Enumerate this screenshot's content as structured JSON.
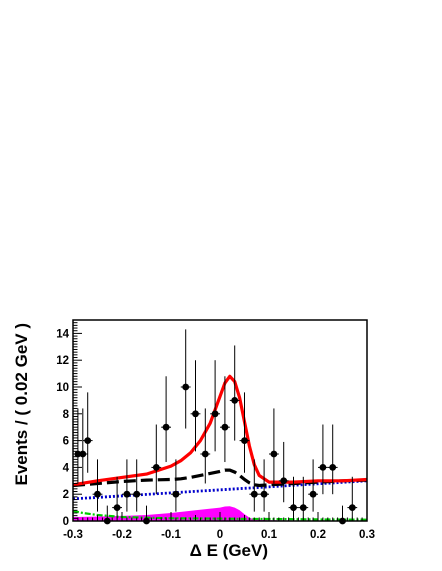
{
  "chart_data": {
    "type": "scatter",
    "title": "",
    "xlabel": "Δ E (GeV)",
    "ylabel": "Events / ( 0.02 GeV )",
    "xlim": [
      -0.3,
      0.3
    ],
    "ylim": [
      0,
      15
    ],
    "x_ticks": [
      "-0.3",
      "-0.2",
      "-0.1",
      "0",
      "0.1",
      "0.2",
      "0.3"
    ],
    "y_ticks": [
      "0",
      "2",
      "4",
      "6",
      "8",
      "10",
      "12",
      "14"
    ],
    "grid": false,
    "legend": "none",
    "colors": {
      "data_points": "#000000",
      "total_fit": "#ff0000",
      "dashed_component": "#000000",
      "linear_background": "#0000cc",
      "green_component": "#00cc00",
      "magenta_component": "#ff00ff"
    },
    "data_points": [
      {
        "x": -0.29,
        "y": 5,
        "yerr_low": 2.2,
        "yerr_high": 3.4
      },
      {
        "x": -0.28,
        "y": 5,
        "yerr_low": 2.2,
        "yerr_high": 3.4
      },
      {
        "x": -0.27,
        "y": 6,
        "yerr_low": 2.4,
        "yerr_high": 3.6
      },
      {
        "x": -0.25,
        "y": 2,
        "yerr_low": 1.3,
        "yerr_high": 2.6
      },
      {
        "x": -0.23,
        "y": 0,
        "yerr_low": 0,
        "yerr_high": 1.15
      },
      {
        "x": -0.21,
        "y": 1,
        "yerr_low": 0.8,
        "yerr_high": 2.3
      },
      {
        "x": -0.19,
        "y": 2,
        "yerr_low": 1.3,
        "yerr_high": 2.6
      },
      {
        "x": -0.17,
        "y": 2,
        "yerr_low": 1.3,
        "yerr_high": 2.6
      },
      {
        "x": -0.15,
        "y": 0,
        "yerr_low": 0,
        "yerr_high": 1.15
      },
      {
        "x": -0.13,
        "y": 4,
        "yerr_low": 2.0,
        "yerr_high": 3.2
      },
      {
        "x": -0.11,
        "y": 7,
        "yerr_low": 2.6,
        "yerr_high": 3.8
      },
      {
        "x": -0.09,
        "y": 2,
        "yerr_low": 1.3,
        "yerr_high": 2.6
      },
      {
        "x": -0.07,
        "y": 10,
        "yerr_low": 3.1,
        "yerr_high": 4.3
      },
      {
        "x": -0.05,
        "y": 8,
        "yerr_low": 2.8,
        "yerr_high": 4.0
      },
      {
        "x": -0.03,
        "y": 5,
        "yerr_low": 2.2,
        "yerr_high": 3.4
      },
      {
        "x": -0.01,
        "y": 8,
        "yerr_low": 2.8,
        "yerr_high": 4.0
      },
      {
        "x": 0.01,
        "y": 7,
        "yerr_low": 2.6,
        "yerr_high": 3.8
      },
      {
        "x": 0.03,
        "y": 9,
        "yerr_low": 3.0,
        "yerr_high": 4.1
      },
      {
        "x": 0.05,
        "y": 6,
        "yerr_low": 2.4,
        "yerr_high": 3.6
      },
      {
        "x": 0.07,
        "y": 2,
        "yerr_low": 1.3,
        "yerr_high": 2.6
      },
      {
        "x": 0.09,
        "y": 2,
        "yerr_low": 1.3,
        "yerr_high": 2.6
      },
      {
        "x": 0.11,
        "y": 5,
        "yerr_low": 2.2,
        "yerr_high": 3.4
      },
      {
        "x": 0.13,
        "y": 3,
        "yerr_low": 1.6,
        "yerr_high": 2.9
      },
      {
        "x": 0.15,
        "y": 1,
        "yerr_low": 0.8,
        "yerr_high": 2.3
      },
      {
        "x": 0.17,
        "y": 1,
        "yerr_low": 0.8,
        "yerr_high": 2.3
      },
      {
        "x": 0.19,
        "y": 2,
        "yerr_low": 1.3,
        "yerr_high": 2.6
      },
      {
        "x": 0.21,
        "y": 4,
        "yerr_low": 2.0,
        "yerr_high": 3.2
      },
      {
        "x": 0.23,
        "y": 4,
        "yerr_low": 2.0,
        "yerr_high": 3.2
      },
      {
        "x": 0.25,
        "y": 0,
        "yerr_low": 0,
        "yerr_high": 1.15
      },
      {
        "x": 0.27,
        "y": 1,
        "yerr_low": 0.8,
        "yerr_high": 2.3
      }
    ],
    "curves": [
      {
        "style": "solid-red",
        "x": [
          -0.3,
          -0.25,
          -0.2,
          -0.15,
          -0.1,
          -0.08,
          -0.06,
          -0.04,
          -0.02,
          0.0,
          0.01,
          0.02,
          0.03,
          0.04,
          0.05,
          0.06,
          0.07,
          0.08,
          0.1,
          0.15,
          0.2,
          0.25,
          0.3
        ],
        "y": [
          2.7,
          3.0,
          3.25,
          3.5,
          4.1,
          4.5,
          5.1,
          6.0,
          7.3,
          9.3,
          10.3,
          10.8,
          10.4,
          9.2,
          7.4,
          5.6,
          4.2,
          3.4,
          2.9,
          2.9,
          3.0,
          3.0,
          3.1
        ]
      },
      {
        "style": "dashed-black",
        "x": [
          -0.3,
          -0.25,
          -0.2,
          -0.15,
          -0.1,
          -0.08,
          -0.06,
          -0.04,
          -0.02,
          0.0,
          0.01,
          0.02,
          0.03,
          0.04,
          0.05,
          0.06,
          0.07,
          0.08,
          0.1,
          0.15,
          0.2,
          0.25,
          0.3
        ],
        "y": [
          2.65,
          2.8,
          2.95,
          3.05,
          3.1,
          3.15,
          3.25,
          3.4,
          3.55,
          3.7,
          3.8,
          3.8,
          3.65,
          3.4,
          3.1,
          2.85,
          2.7,
          2.65,
          2.7,
          2.8,
          2.9,
          3.0,
          3.05
        ]
      },
      {
        "style": "dotted-blue",
        "x": [
          -0.3,
          0.3
        ],
        "y": [
          1.65,
          3.0
        ]
      },
      {
        "style": "dashdot-green",
        "x": [
          -0.3,
          -0.28,
          -0.25,
          -0.2,
          -0.1,
          0.0,
          0.05,
          0.1,
          0.2,
          0.3
        ],
        "y": [
          0.75,
          0.6,
          0.45,
          0.3,
          0.2,
          0.18,
          0.16,
          0.15,
          0.12,
          0.1
        ]
      },
      {
        "style": "filled-magenta",
        "x": [
          -0.3,
          -0.25,
          -0.2,
          -0.15,
          -0.1,
          -0.05,
          0.0,
          0.01,
          0.02,
          0.03,
          0.04,
          0.05,
          0.06,
          0.07,
          0.1,
          0.2,
          0.3
        ],
        "y": [
          0.3,
          0.33,
          0.38,
          0.45,
          0.6,
          0.8,
          1.0,
          1.08,
          1.1,
          1.0,
          0.8,
          0.5,
          0.25,
          0.12,
          0.05,
          0.02,
          0.02
        ]
      }
    ]
  }
}
